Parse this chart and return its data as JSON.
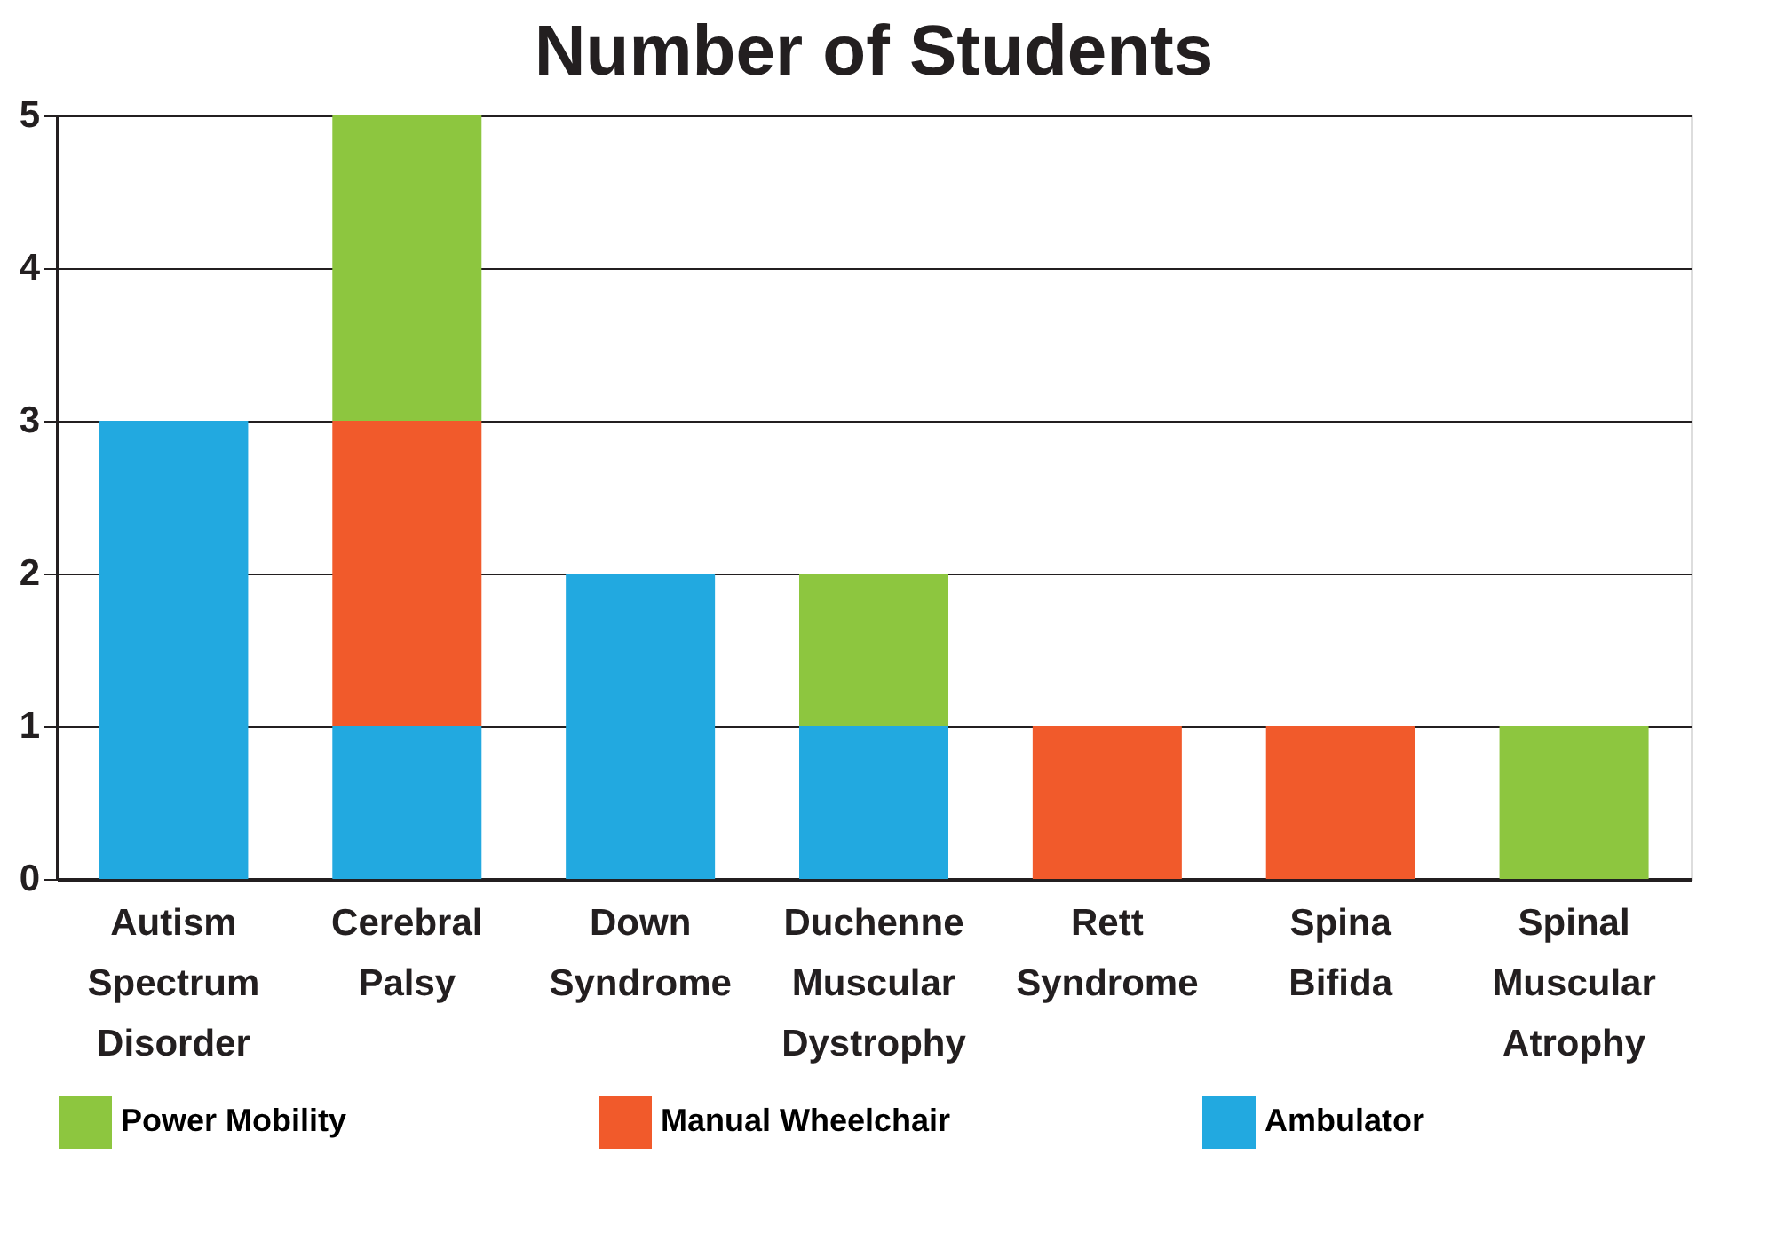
{
  "chart_data": {
    "type": "bar",
    "title": "Number of Students",
    "stacked": true,
    "categories": [
      "Autism Spectrum Disorder",
      "Cerebral Palsy",
      "Down Syndrome",
      "Duchenne Muscular Dystrophy",
      "Rett Syndrome",
      "Spina Bifida",
      "Spinal Muscular Atrophy"
    ],
    "series": [
      {
        "name": "Ambulator",
        "color": "#22a9e0",
        "values": [
          3,
          1,
          2,
          1,
          0,
          0,
          0
        ]
      },
      {
        "name": "Manual Wheelchair",
        "color": "#f15a2b",
        "values": [
          0,
          2,
          0,
          0,
          1,
          1,
          0
        ]
      },
      {
        "name": "Power Mobility",
        "color": "#8dc63f",
        "values": [
          0,
          2,
          0,
          1,
          0,
          0,
          1
        ]
      }
    ],
    "ylim": [
      0,
      5
    ],
    "yticks": [
      0,
      1,
      2,
      3,
      4,
      5
    ],
    "grid": "y",
    "legend": "bottom"
  }
}
